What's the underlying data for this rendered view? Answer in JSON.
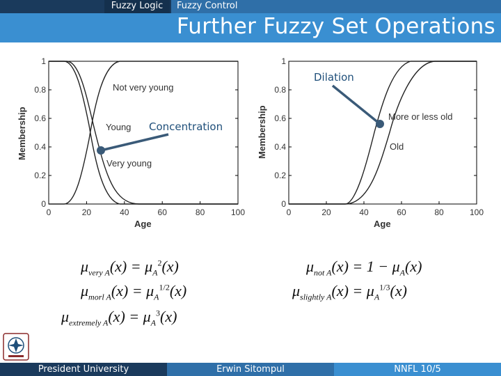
{
  "header": {
    "tabs": [
      {
        "label": "Fuzzy Logic"
      },
      {
        "label": "Fuzzy Control"
      }
    ],
    "title": "Further Fuzzy Set Operations"
  },
  "annotations": {
    "concentration": "Concentration",
    "dilation": "Dilation"
  },
  "charts": [
    {
      "type": "line",
      "xlabel": "Age",
      "ylabel": "Membership",
      "xlim": [
        0,
        100
      ],
      "ylim": [
        0,
        1
      ],
      "xticks": [
        0,
        20,
        40,
        60,
        80,
        100
      ],
      "yticks": [
        0,
        0.2,
        0.4,
        0.6,
        0.8,
        1
      ],
      "curve_labels": [
        "Not very young",
        "Young",
        "Very young"
      ]
    },
    {
      "type": "line",
      "xlabel": "Age",
      "ylabel": "Membership",
      "xlim": [
        0,
        100
      ],
      "ylim": [
        0,
        1
      ],
      "xticks": [
        0,
        20,
        40,
        60,
        80,
        100
      ],
      "yticks": [
        0,
        0.2,
        0.4,
        0.6,
        0.8,
        1
      ],
      "curve_labels": [
        "More or less old",
        "Old"
      ]
    }
  ],
  "formulas": {
    "very": {
      "mu": "μ",
      "sub": "very A",
      "x": "(x) = ",
      "mu2": "μ",
      "sub2": "A",
      "sup2": "2",
      "x2": "(x)"
    },
    "more": {
      "mu": "μ",
      "sub": "morl A",
      "x": "(x) = ",
      "mu2": "μ",
      "sub2": "A",
      "sup2": "1/2",
      "x2": "(x)"
    },
    "extremely": {
      "mu": "μ",
      "sub": "extremely A",
      "x": "(x) = ",
      "mu2": "μ",
      "sub2": "A",
      "sup2": "3",
      "x2": "(x)"
    },
    "not": {
      "mu": "μ",
      "sub": "not A",
      "x": "(x) = 1 − ",
      "mu2": "μ",
      "sub2": "A",
      "x2": "(x)"
    },
    "slightly": {
      "mu": "μ",
      "sub": "slightly A",
      "x": "(x) = ",
      "mu2": "μ",
      "sub2": "A",
      "sup2": "1/3",
      "x2": "(x)"
    }
  },
  "footer": {
    "university": "President University",
    "author": "Erwin Sitompul",
    "page": "NNFL 10/5"
  },
  "colors": {
    "dark": "#1a3a5c",
    "mid": "#2f6fa8",
    "light": "#3a8fd1",
    "pointer": "#3a5a78"
  }
}
